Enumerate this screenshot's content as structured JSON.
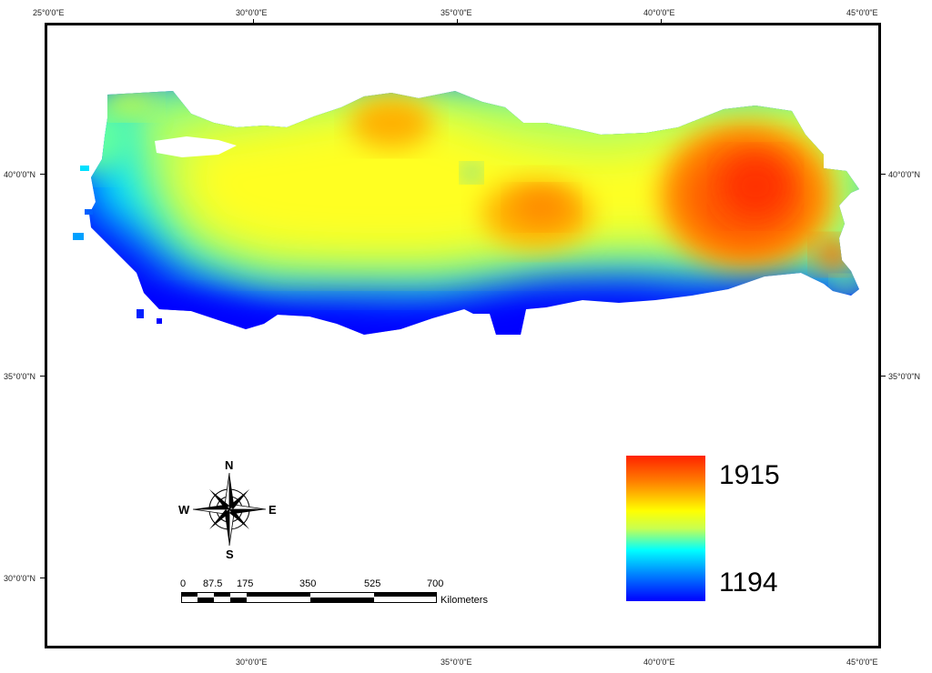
{
  "axes": {
    "lon_labels": [
      "25°0'0\"E",
      "30°0'0\"E",
      "35°0'0\"E",
      "40°0'0\"E",
      "45°0'0\"E"
    ],
    "lat_labels": [
      "40°0'0\"N",
      "35°0'0\"N",
      "30°0'0\"N"
    ]
  },
  "legend": {
    "max_label": "1915",
    "min_label": "1194",
    "colors": [
      "#ff2200",
      "#ff8000",
      "#ffff00",
      "#00ffff",
      "#0000ff"
    ]
  },
  "compass": {
    "n": "N",
    "s": "S",
    "e": "E",
    "w": "W"
  },
  "scale_bar": {
    "ticks": [
      "0",
      "87.5",
      "175",
      "350",
      "525",
      "700"
    ],
    "unit": "Kilometers"
  }
}
